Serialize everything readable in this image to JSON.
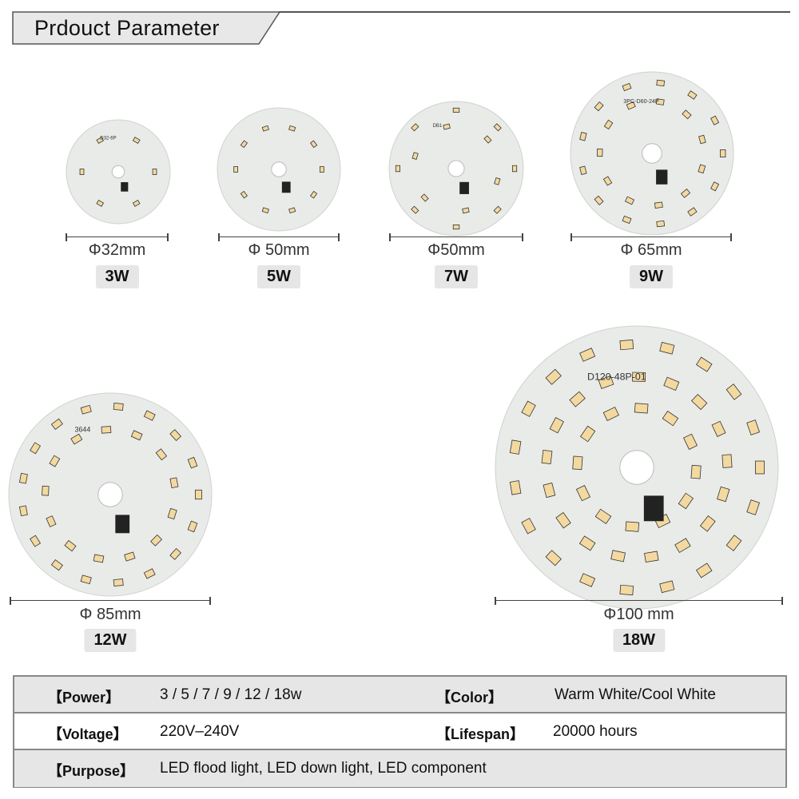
{
  "header": {
    "title": "Prdouct Parameter"
  },
  "boards": [
    {
      "watt": "3W",
      "diameter": "Φ32mm",
      "silk": "D32-6P",
      "led_count": 6
    },
    {
      "watt": "5W",
      "diameter": "Φ 50mm",
      "silk": "",
      "led_count": 10
    },
    {
      "watt": "7W",
      "diameter": "Φ50mm",
      "silk": "DB1",
      "led_count": 14
    },
    {
      "watt": "9W",
      "diameter": "Φ 65mm",
      "silk": "3PC-D60-24P",
      "led_count": 24
    },
    {
      "watt": "12W",
      "diameter": "Φ 85mm",
      "silk": "3644",
      "led_count": 30
    },
    {
      "watt": "18W",
      "diameter": "Φ100 mm",
      "silk": "D120-48P-01",
      "led_count": 48
    }
  ],
  "specs": {
    "power": {
      "label": "【Power】",
      "value": "3 / 5 / 7 / 9 / 12 / 18w"
    },
    "color": {
      "label": "【Color】",
      "value": "Warm White/Cool White"
    },
    "voltage": {
      "label": "【Voltage】",
      "value": "220V–240V"
    },
    "lifespan": {
      "label": "【Lifespan】",
      "value": "20000 hours"
    },
    "purpose": {
      "label": "【Purpose】",
      "value": "LED flood light, LED down light, LED component"
    }
  },
  "colors": {
    "board": "#e9ebe8",
    "led": "#f3d9a0",
    "badge": "#e6e6e6"
  }
}
